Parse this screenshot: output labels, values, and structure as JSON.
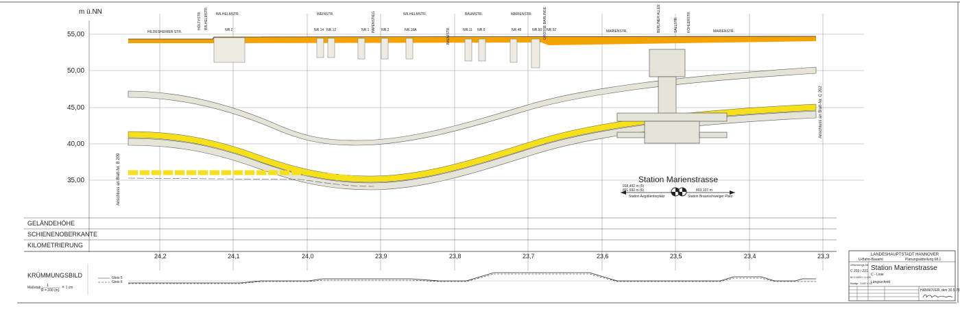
{
  "axis": {
    "unit": "m ü.NN",
    "labels": [
      "55,00",
      "50,00",
      "45,00",
      "40,00",
      "35,00"
    ]
  },
  "streets": {
    "hildesheimer": "HILDESHEIMER STR.",
    "hoeltystr": "HÖLTYSTR.",
    "wilhelmstr_v": "WILHELMSTR.",
    "wilhelmstr_1": "WILHELMSTR.",
    "weinstr": "WEINSTR.",
    "papenstieg": "PAPENSTIEG",
    "wilhelmstr_2": "WILHELMSTR.",
    "baumstr_v": "BAUMSTR.",
    "baumstr": "BAUMSTR.",
    "marienstr_top": "MARIENSTR.",
    "grosse_barlinge": "GROSSE BARLINGE",
    "marienstr_1": "MARIENSTR.",
    "berliner_allee": "BERLINER ALLEE",
    "sallstr": "SALLSTR.",
    "koehlerstr": "KÖHLERSTR.",
    "marienstr_2": "MARIENSTR."
  },
  "house_numbers": [
    "NR.2",
    "NR.14",
    "NR.12",
    "NR.1",
    "NR.2",
    "NR.18A",
    "NR.11",
    "NR.9",
    "NR.48",
    "NR.50",
    "NR.52"
  ],
  "connections": {
    "left": "Anschluss an Blatt-Nr. B 209",
    "right": "Anschluss an Blatt-Nr. C 202"
  },
  "station": {
    "title": "Station Marienstrasse",
    "dist_left_1": "918,492 m  (5)",
    "dist_left_2": "891,932 m  (6)",
    "dist_right": "803,107 m",
    "dir_left": "Station Aegidientorplatz",
    "dir_right": "Station Braunschweiger Platz"
  },
  "table": {
    "rows": [
      "GELÄNDEHÖHE",
      "SCHIENENOBERKANTE",
      "KILOMETRIERUNG"
    ]
  },
  "km_labels": [
    "24,2",
    "24,1",
    "24,0",
    "23,9",
    "23,8",
    "23,7",
    "23,6",
    "23,5",
    "23,4",
    "23,3"
  ],
  "curvature": {
    "title": "KRÜMMUNGSBILD",
    "scale_label": "Maßstab :",
    "scale_num": "1",
    "scale_den": "R = 200 (m)",
    "scale_eq": "≙ 1 cm",
    "legend_1": "Gleis 5",
    "legend_2": "Gleis 6"
  },
  "title_block": {
    "authority": "LANDESHAUPTSTADT HANNOVER",
    "office": "U-Bahn-Bauamt",
    "department": "Planungsabteilung 68.1",
    "drawing_no_label": "Zeichnungs-Nr.",
    "drawing_no": "C 203 / 221",
    "scale": "M 1:1000 / 1:100",
    "sheet": "Blattgr.: 1187 x 42",
    "title": "Station Marienstrasse",
    "line": "C - Linie",
    "type": "Längsschnitt",
    "place_date": "HANNOVER, den 30.5.78"
  },
  "colors": {
    "track": "#f5e01a",
    "ground": "#f5a300",
    "concrete": "#e6e4d8"
  }
}
